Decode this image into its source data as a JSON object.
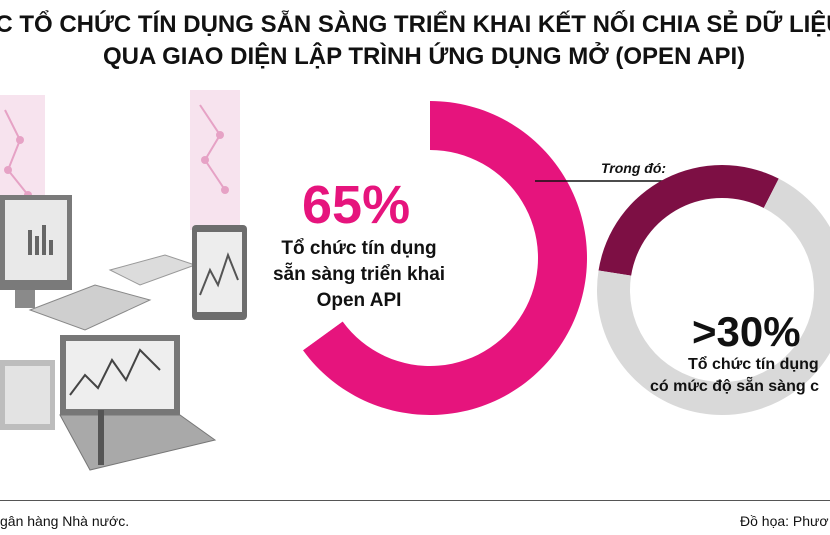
{
  "header": {
    "title_line1": "ÁC TỔ CHỨC TÍN DỤNG SẴN SÀNG TRIỂN KHAI KẾT NỐI CHIA SẺ DỮ LIỆU",
    "title_line2": "QUA GIAO DIỆN LẬP TRÌNH ỨNG DỤNG MỞ (OPEN API)"
  },
  "chart_data": [
    {
      "type": "pie",
      "slices": [
        {
          "label": "Tổ chức tín dụng sẵn sàng triển khai Open API",
          "value": 65,
          "color": "#e6147d"
        },
        {
          "label": "",
          "value": 35,
          "color": "#ffffff"
        }
      ],
      "value_label": "65%",
      "description": [
        "Tổ chức tín dụng",
        "sẵn sàng triển khai",
        "Open API"
      ]
    },
    {
      "type": "pie",
      "note": "Trong đó:",
      "slices": [
        {
          "label": "Tổ chức tín dụng có mức độ sẵn sàng cao",
          "value": 30,
          "color": "#7d0f44"
        },
        {
          "label": "",
          "value": 70,
          "color": "#d9d9d9"
        }
      ],
      "value_label": ">30%",
      "description": [
        "Tổ chức tín dụng",
        "có mức độ sẵn sàng c"
      ]
    }
  ],
  "colors": {
    "accent": "#e6147d",
    "dark_accent": "#7d0f44",
    "grey": "#d9d9d9"
  },
  "footer": {
    "source": "gân hàng Nhà nước.",
    "credit": "Đồ họa: Phươ"
  }
}
